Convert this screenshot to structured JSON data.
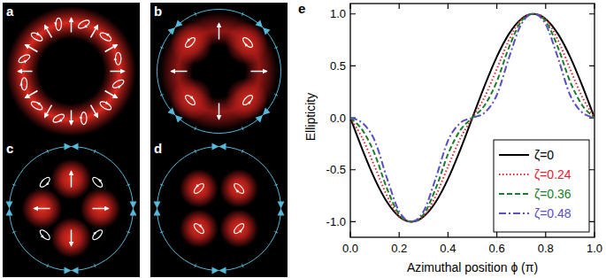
{
  "panel_labels": [
    "a",
    "b",
    "c",
    "d",
    "e"
  ],
  "chart_data": {
    "type": "line",
    "x_label": "Azimuthal position ϕ (π)",
    "y_label": "Ellipticity",
    "x": [
      0,
      0.05,
      0.1,
      0.15,
      0.2,
      0.25,
      0.3,
      0.35,
      0.4,
      0.45,
      0.5,
      0.55,
      0.6,
      0.65,
      0.7,
      0.75,
      0.8,
      0.85,
      0.9,
      0.95,
      1
    ],
    "series": [
      {
        "name": "ζ=0",
        "color": "#000000",
        "line_style": "solid",
        "values": [
          0,
          -0.309,
          -0.588,
          -0.809,
          -0.951,
          -1,
          -0.951,
          -0.809,
          -0.588,
          -0.309,
          0,
          0.309,
          0.588,
          0.809,
          0.951,
          1,
          0.951,
          0.809,
          0.588,
          0.309,
          0
        ]
      },
      {
        "name": "ζ=0.24",
        "color": "#e8202e",
        "line_style": "dotted",
        "values": [
          0,
          -0.2,
          -0.47,
          -0.75,
          -0.95,
          -1,
          -0.95,
          -0.75,
          -0.47,
          -0.2,
          0,
          0.2,
          0.47,
          0.75,
          0.95,
          1,
          0.95,
          0.75,
          0.47,
          0.2,
          0
        ]
      },
      {
        "name": "ζ=0.36",
        "color": "#1b7d2c",
        "line_style": "dashed",
        "values": [
          0,
          -0.12,
          -0.35,
          -0.68,
          -0.93,
          -1,
          -0.93,
          -0.68,
          -0.35,
          -0.12,
          0,
          0.12,
          0.35,
          0.68,
          0.93,
          1,
          0.93,
          0.68,
          0.35,
          0.12,
          0
        ]
      },
      {
        "name": "ζ=0.48",
        "color": "#5a4fc0",
        "line_style": "dashdot",
        "values": [
          0,
          -0.05,
          -0.22,
          -0.58,
          -0.9,
          -1,
          -0.9,
          -0.58,
          -0.22,
          -0.05,
          0,
          0.05,
          0.22,
          0.58,
          0.9,
          1,
          0.9,
          0.58,
          0.22,
          0.05,
          0
        ]
      }
    ],
    "xlim": [
      0,
      1
    ],
    "ylim": [
      -1.15,
      1.1
    ],
    "xticks": [
      {
        "value": 0,
        "label": "0.0"
      },
      {
        "value": 0.2,
        "label": "0.2"
      },
      {
        "value": 0.4,
        "label": "0.4"
      },
      {
        "value": 0.6,
        "label": "0.6"
      },
      {
        "value": 0.8,
        "label": "0.8"
      },
      {
        "value": 1,
        "label": "1.0"
      }
    ],
    "yticks": [
      {
        "value": -1,
        "label": "-1.0"
      },
      {
        "value": -0.5,
        "label": "-0.5"
      },
      {
        "value": 0,
        "label": "0.0"
      },
      {
        "value": 0.5,
        "label": "0.5"
      },
      {
        "value": 1,
        "label": "1.0"
      }
    ],
    "legend": "lower right",
    "grid": false
  }
}
